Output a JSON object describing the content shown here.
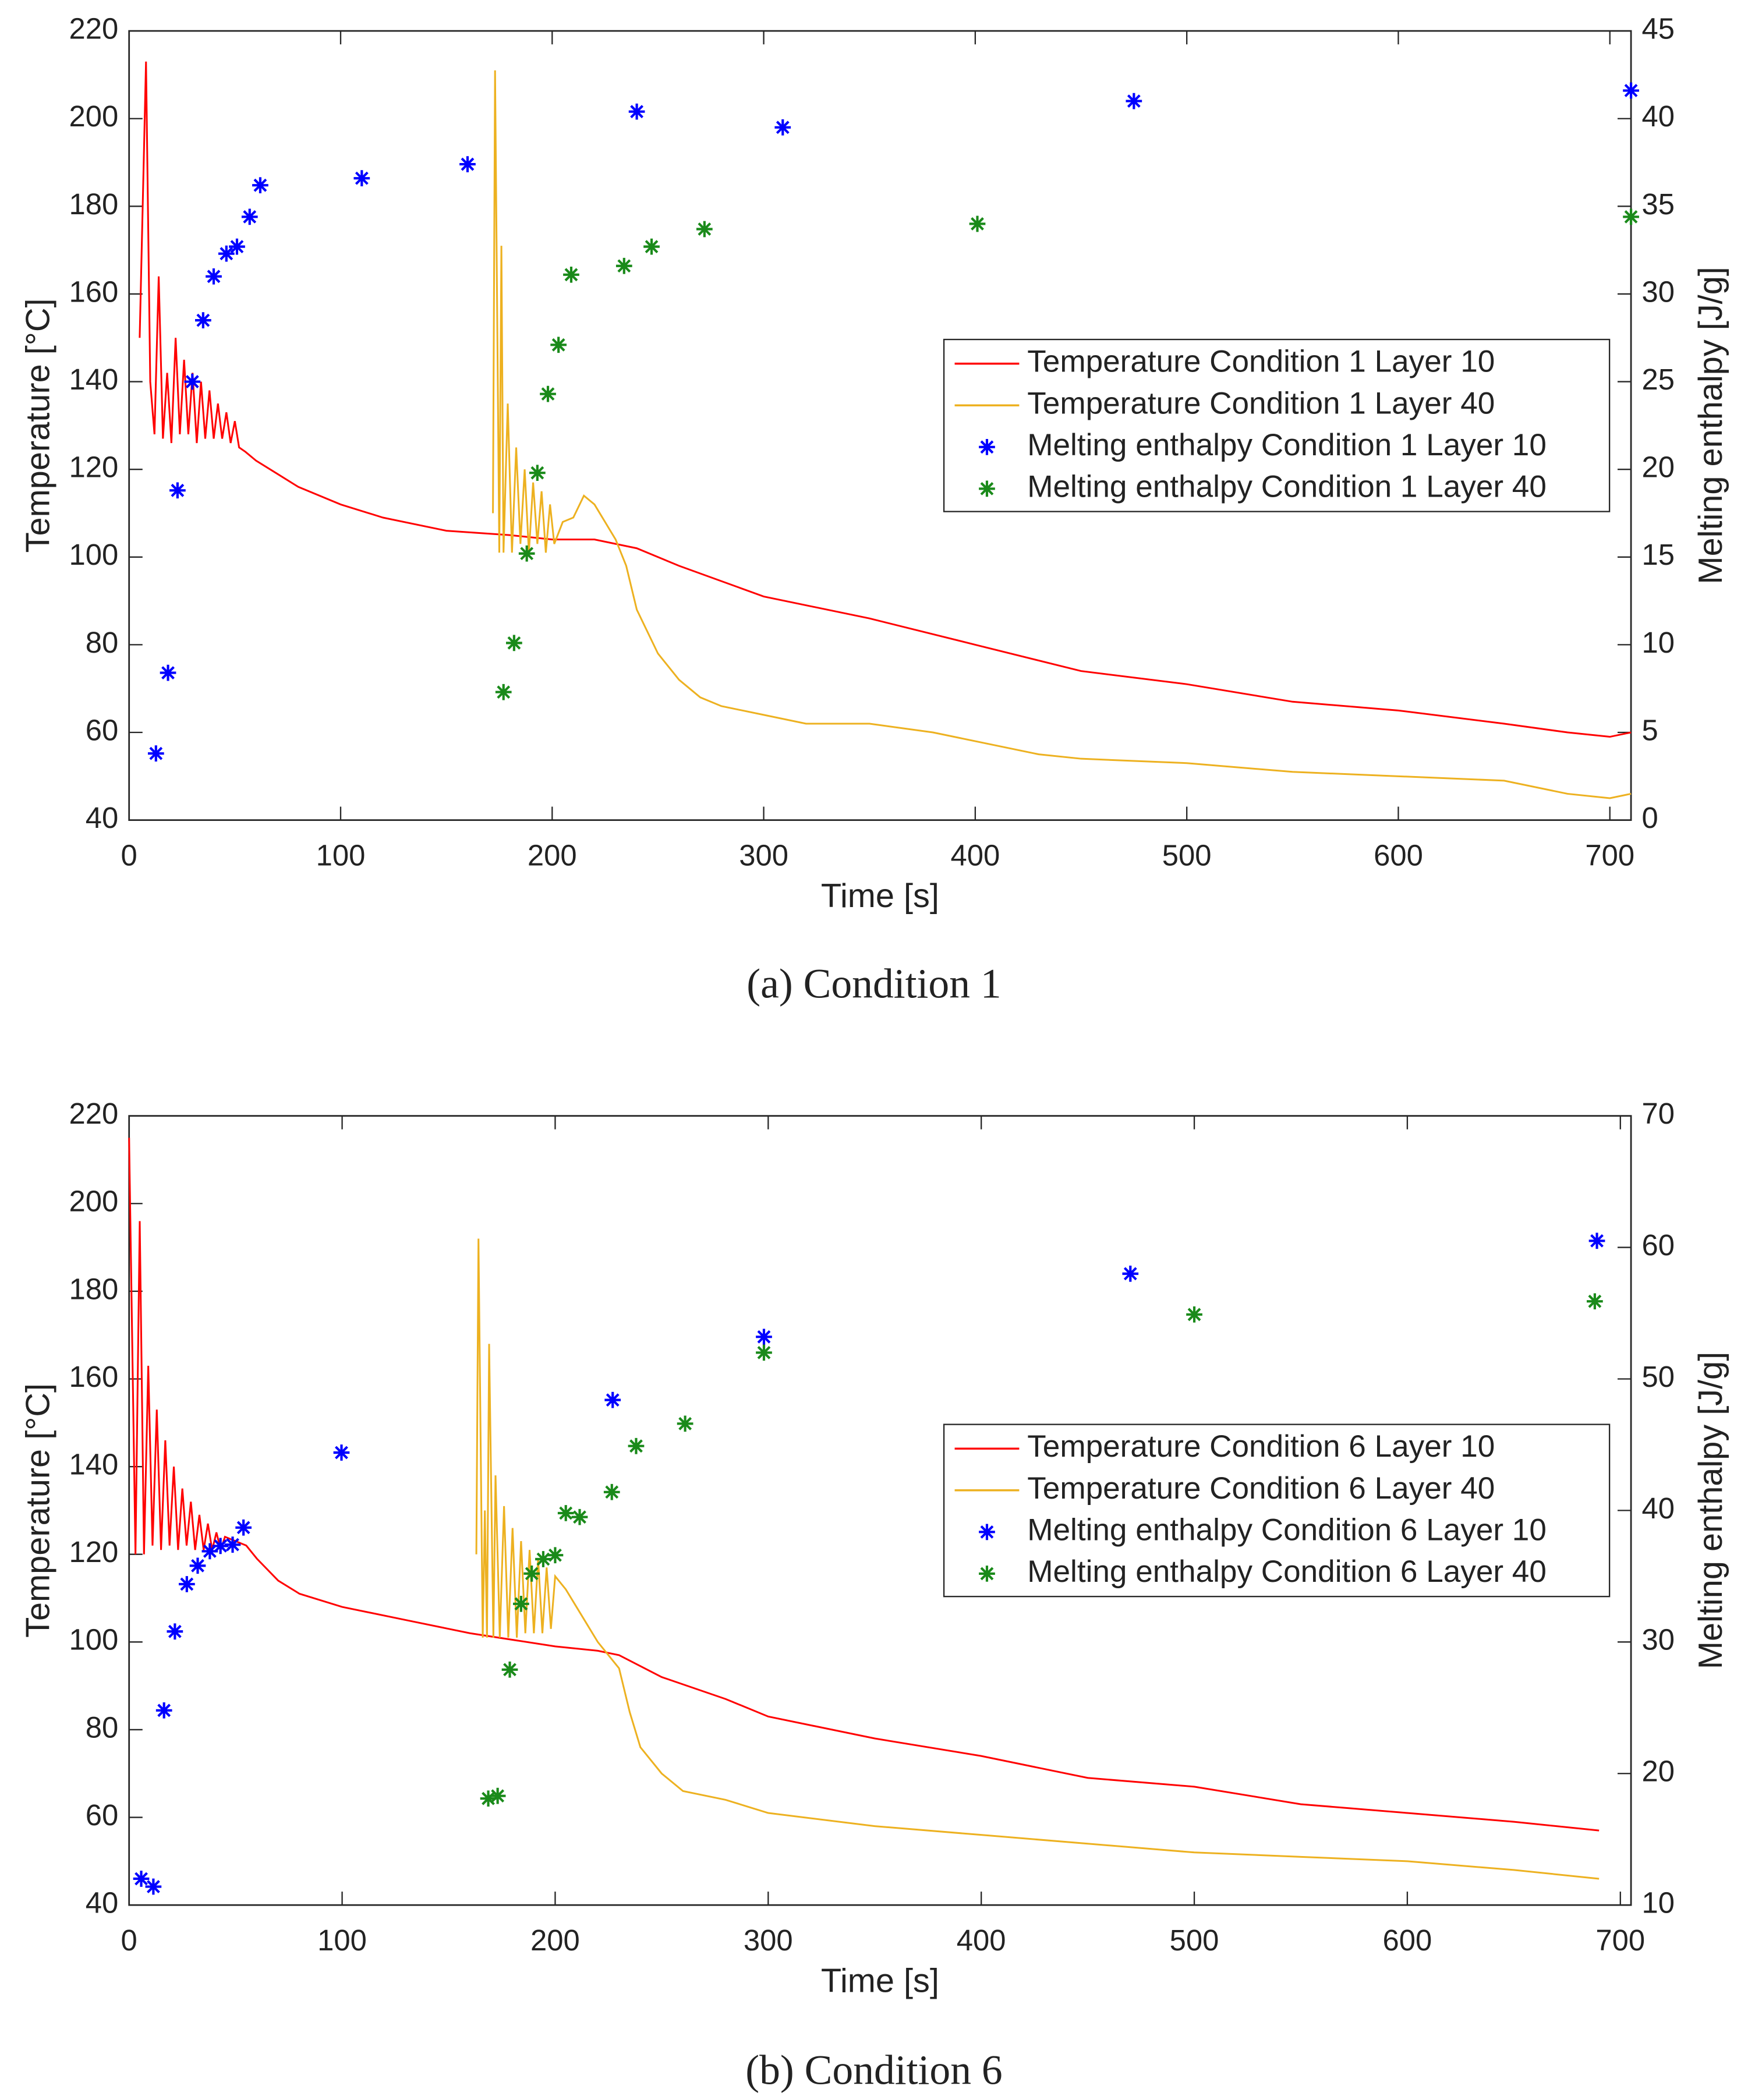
{
  "chart_data": [
    {
      "type": "line",
      "caption": "(a) Condition 1",
      "xlabel": "Time [s]",
      "ylabel": "Temperature [°C]",
      "y2label": "Melting enthalpy [J/g]",
      "xlim": [
        0,
        710
      ],
      "xticks": [
        0,
        100,
        200,
        300,
        400,
        500,
        600,
        700
      ],
      "ylim": [
        40,
        220
      ],
      "yticks": [
        40,
        60,
        80,
        100,
        120,
        140,
        160,
        180,
        200,
        220
      ],
      "y2lim": [
        0,
        45
      ],
      "y2ticks": [
        0,
        5,
        10,
        15,
        20,
        25,
        30,
        35,
        40,
        45
      ],
      "legend": "right",
      "series": [
        {
          "name": "Temperature Condition 1 Layer 10",
          "type": "line",
          "color": "#ff0000",
          "x": [
            5,
            8,
            10,
            12,
            14,
            16,
            18,
            20,
            22,
            24,
            26,
            28,
            30,
            32,
            34,
            36,
            38,
            40,
            42,
            44,
            46,
            48,
            50,
            52,
            55,
            60,
            70,
            80,
            100,
            120,
            150,
            180,
            200,
            220,
            240,
            260,
            300,
            350,
            400,
            450,
            500,
            550,
            600,
            650,
            680,
            700,
            710
          ],
          "values": [
            150,
            213,
            140,
            128,
            164,
            127,
            142,
            126,
            150,
            128,
            145,
            128,
            142,
            126,
            140,
            127,
            138,
            127,
            135,
            127,
            133,
            126,
            131,
            125,
            124,
            122,
            119,
            116,
            112,
            109,
            106,
            105,
            104,
            104,
            102,
            98,
            91,
            86,
            80,
            74,
            71,
            67,
            65,
            62,
            60,
            59,
            60
          ]
        },
        {
          "name": "Temperature Condition 1 Layer 40",
          "type": "line",
          "color": "#edb120",
          "x": [
            172,
            173,
            175,
            176,
            177,
            179,
            181,
            183,
            185,
            187,
            189,
            191,
            193,
            195,
            197,
            199,
            201,
            205,
            210,
            215,
            220,
            225,
            230,
            235,
            240,
            250,
            260,
            270,
            280,
            300,
            320,
            350,
            380,
            400,
            430,
            450,
            500,
            550,
            600,
            650,
            680,
            700,
            710
          ],
          "values": [
            110,
            211,
            101,
            171,
            101,
            135,
            101,
            125,
            103,
            120,
            101,
            117,
            103,
            115,
            101,
            112,
            103,
            108,
            109,
            114,
            112,
            108,
            104,
            98,
            88,
            78,
            72,
            68,
            66,
            64,
            62,
            62,
            60,
            58,
            55,
            54,
            53,
            51,
            50,
            49,
            46,
            45,
            46
          ]
        },
        {
          "name": "Melting enthalpy Condition 1 Layer 10",
          "type": "scatter",
          "color": "#0000ff",
          "axis": "y2",
          "x": [
            12.7,
            18.4,
            22.9,
            29.9,
            35,
            40,
            46,
            51,
            57,
            62,
            110,
            160,
            240,
            309,
            475,
            710
          ],
          "values": [
            3.8,
            8.4,
            18.8,
            25,
            28.5,
            31,
            32.3,
            32.7,
            34.4,
            36.2,
            36.6,
            37.4,
            40.4,
            39.5,
            41,
            41.6
          ]
        },
        {
          "name": "Melting enthalpy Condition 1 Layer 40",
          "type": "scatter",
          "color": "#1a8a1a",
          "axis": "y2",
          "x": [
            177,
            182,
            188,
            193,
            198,
            203,
            209,
            234,
            247,
            272,
            401,
            710
          ],
          "values": [
            7.3,
            10.1,
            15.2,
            19.8,
            24.3,
            27.1,
            31.1,
            31.6,
            32.7,
            33.7,
            34,
            34.4
          ]
        }
      ]
    },
    {
      "type": "line",
      "caption": "(b) Condition 6",
      "xlabel": "Time [s]",
      "ylabel": "Temperature [°C]",
      "y2label": "Melting enthalpy [J/g]",
      "xlim": [
        0,
        705
      ],
      "xticks": [
        0,
        100,
        200,
        300,
        400,
        500,
        600,
        700
      ],
      "ylim": [
        40,
        220
      ],
      "yticks": [
        40,
        60,
        80,
        100,
        120,
        140,
        160,
        180,
        200,
        220
      ],
      "y2lim": [
        10,
        70
      ],
      "y2ticks": [
        10,
        20,
        30,
        40,
        50,
        60,
        70
      ],
      "legend": "right",
      "series": [
        {
          "name": "Temperature Condition 6 Layer 10",
          "type": "line",
          "color": "#ff0000",
          "x": [
            0,
            3,
            5,
            7,
            9,
            11,
            13,
            15,
            17,
            19,
            21,
            23,
            25,
            27,
            29,
            31,
            33,
            35,
            37,
            39,
            41,
            43,
            45,
            50,
            55,
            60,
            70,
            80,
            100,
            130,
            160,
            200,
            220,
            230,
            250,
            280,
            300,
            350,
            400,
            450,
            500,
            550,
            600,
            650,
            690
          ],
          "values": [
            215,
            120,
            196,
            120,
            163,
            122,
            153,
            121,
            146,
            122,
            140,
            121,
            135,
            122,
            132,
            121,
            129,
            121,
            127,
            121,
            125,
            121,
            124,
            123,
            122,
            119,
            114,
            111,
            108,
            105,
            102,
            99,
            98,
            97,
            92,
            87,
            83,
            78,
            74,
            69,
            67,
            63,
            61,
            59,
            57
          ]
        },
        {
          "name": "Temperature Condition 6 Layer 40",
          "type": "line",
          "color": "#edb120",
          "x": [
            163,
            164,
            166,
            167,
            168,
            169,
            171,
            172,
            174,
            176,
            178,
            180,
            182,
            184,
            186,
            188,
            190,
            192,
            194,
            196,
            198,
            200,
            205,
            210,
            215,
            220,
            225,
            230,
            235,
            240,
            250,
            260,
            280,
            300,
            350,
            400,
            450,
            500,
            550,
            600,
            650,
            690
          ],
          "values": [
            120,
            192,
            101,
            130,
            101,
            168,
            101,
            138,
            101,
            131,
            101,
            126,
            101,
            123,
            102,
            121,
            102,
            119,
            102,
            117,
            103,
            115,
            112,
            108,
            104,
            100,
            97,
            94,
            84,
            76,
            70,
            66,
            64,
            61,
            58,
            56,
            54,
            52,
            51,
            50,
            48,
            46
          ]
        },
        {
          "name": "Melting enthalpy Condition 6 Layer 10",
          "type": "scatter",
          "color": "#0000ff",
          "axis": "y2",
          "x": [
            5.7,
            11.4,
            16.4,
            21.5,
            27.1,
            32.2,
            37.9,
            42.9,
            48.6,
            53.7,
            99.7,
            227,
            298,
            470,
            689
          ],
          "values": [
            12,
            11.4,
            24.8,
            30.8,
            34.4,
            35.8,
            36.9,
            37.3,
            37.4,
            38.7,
            44.4,
            48.4,
            53.2,
            58,
            60.5
          ]
        },
        {
          "name": "Melting enthalpy Condition 6 Layer 40",
          "type": "scatter",
          "color": "#1a8a1a",
          "axis": "y2",
          "x": [
            168.6,
            173,
            178.7,
            184,
            189,
            194.4,
            200,
            205,
            211.5,
            226.6,
            238,
            261,
            298,
            500,
            688
          ],
          "values": [
            18.1,
            18.3,
            27.9,
            32.9,
            35.2,
            36.3,
            36.6,
            39.8,
            39.5,
            41.4,
            44.9,
            46.6,
            52,
            54.9,
            55.9
          ]
        }
      ]
    }
  ]
}
